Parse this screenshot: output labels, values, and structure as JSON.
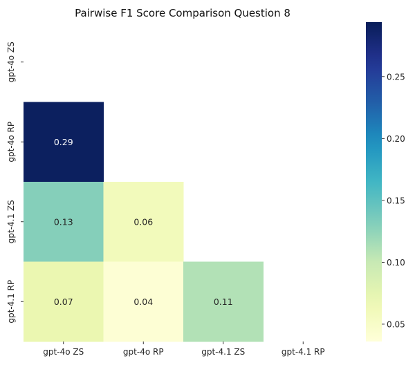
{
  "chart_data": {
    "type": "heatmap",
    "title": "Pairwise F1 Score Comparison Question 8",
    "xlabel": "",
    "ylabel": "",
    "x_categories": [
      "gpt-4o ZS",
      "gpt-4o RP",
      "gpt-4.1 ZS",
      "gpt-4.1 RP"
    ],
    "y_categories": [
      "gpt-4o ZS",
      "gpt-4o RP",
      "gpt-4.1 ZS",
      "gpt-4.1 RP"
    ],
    "mask": "upper-triangle-including-diagonal",
    "cells": [
      {
        "row": "gpt-4o RP",
        "col": "gpt-4o ZS",
        "value": 0.29,
        "label": "0.29"
      },
      {
        "row": "gpt-4.1 ZS",
        "col": "gpt-4o ZS",
        "value": 0.13,
        "label": "0.13"
      },
      {
        "row": "gpt-4.1 ZS",
        "col": "gpt-4o RP",
        "value": 0.06,
        "label": "0.06"
      },
      {
        "row": "gpt-4.1 RP",
        "col": "gpt-4o ZS",
        "value": 0.07,
        "label": "0.07"
      },
      {
        "row": "gpt-4.1 RP",
        "col": "gpt-4o RP",
        "value": 0.04,
        "label": "0.04"
      },
      {
        "row": "gpt-4.1 RP",
        "col": "gpt-4.1 ZS",
        "value": 0.11,
        "label": "0.11"
      }
    ],
    "colormap": "YlGnBu",
    "colorbar": {
      "range": [
        0.036,
        0.294
      ],
      "ticks": [
        0.05,
        0.1,
        0.15,
        0.2,
        0.25
      ],
      "tick_labels": [
        "0.05",
        "0.10",
        "0.15",
        "0.20",
        "0.25"
      ],
      "placement": "right"
    },
    "grid": false
  }
}
